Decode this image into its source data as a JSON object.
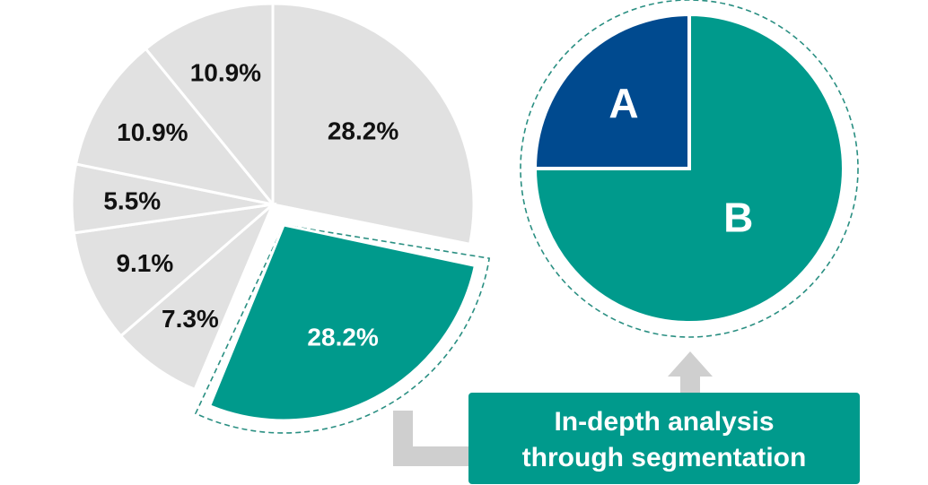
{
  "chart_data": [
    {
      "type": "pie",
      "slices": [
        {
          "label": "28.2%",
          "value": 28.2,
          "color": "#e1e1e1",
          "highlight": false
        },
        {
          "label": "28.2%",
          "value": 28.2,
          "color": "#009a8c",
          "highlight": true
        },
        {
          "label": "7.3%",
          "value": 7.3,
          "color": "#e1e1e1",
          "highlight": false
        },
        {
          "label": "9.1%",
          "value": 9.1,
          "color": "#e1e1e1",
          "highlight": false
        },
        {
          "label": "5.5%",
          "value": 5.5,
          "color": "#e1e1e1",
          "highlight": false
        },
        {
          "label": "10.9%",
          "value": 10.9,
          "color": "#e1e1e1",
          "highlight": false
        },
        {
          "label": "10.9%",
          "value": 10.9,
          "color": "#e1e1e1",
          "highlight": false
        }
      ]
    },
    {
      "type": "pie",
      "slices": [
        {
          "label": "A",
          "value": 25,
          "color": "#004a8f"
        },
        {
          "label": "B",
          "value": 75,
          "color": "#009a8c"
        }
      ]
    }
  ],
  "callout": {
    "line1": "In-depth analysis",
    "line2": "through segmentation",
    "color": "#009a8c"
  },
  "colors": {
    "connector": "#cfcfcf",
    "dash": "#2a8f82"
  }
}
